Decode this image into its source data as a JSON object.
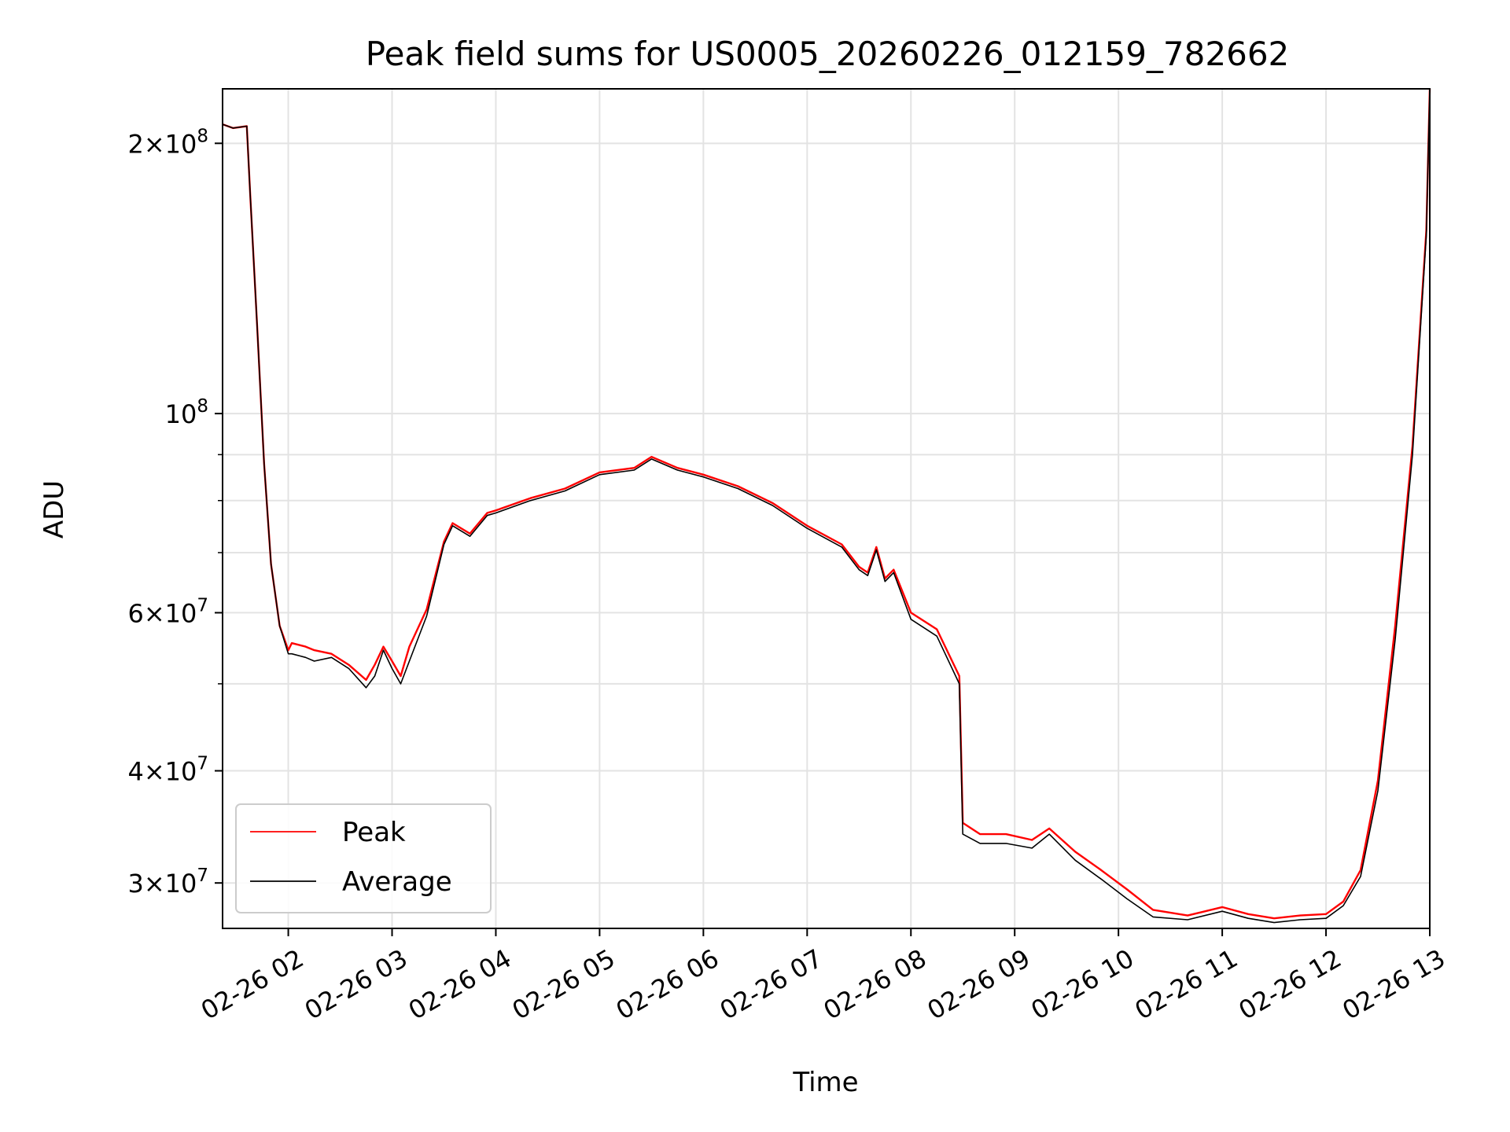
{
  "chart_data": {
    "type": "line",
    "title": "Peak field sums for US0005_20260226_012159_782662",
    "xlabel": "Time",
    "ylabel": "ADU",
    "yscale": "log",
    "xlim": [
      "2026-02-26T01:22",
      "2026-02-26T13:00"
    ],
    "ylim": [
      26700000,
      230000000
    ],
    "grid": true,
    "legend_position": "lower-left",
    "colors": {
      "Peak": "#ff0000",
      "Average": "#000000"
    },
    "x_ticks": [
      {
        "label": "02-26 02",
        "value": "2026-02-26T02:00"
      },
      {
        "label": "02-26 03",
        "value": "2026-02-26T03:00"
      },
      {
        "label": "02-26 04",
        "value": "2026-02-26T04:00"
      },
      {
        "label": "02-26 05",
        "value": "2026-02-26T05:00"
      },
      {
        "label": "02-26 06",
        "value": "2026-02-26T06:00"
      },
      {
        "label": "02-26 07",
        "value": "2026-02-26T07:00"
      },
      {
        "label": "02-26 08",
        "value": "2026-02-26T08:00"
      },
      {
        "label": "02-26 09",
        "value": "2026-02-26T09:00"
      },
      {
        "label": "02-26 10",
        "value": "2026-02-26T10:00"
      },
      {
        "label": "02-26 11",
        "value": "2026-02-26T11:00"
      },
      {
        "label": "02-26 12",
        "value": "2026-02-26T12:00"
      },
      {
        "label": "02-26 13",
        "value": "2026-02-26T13:00"
      }
    ],
    "y_major_ticks": [
      {
        "value": 30000000,
        "mantissa": "3",
        "exponent": "7"
      },
      {
        "value": 40000000,
        "mantissa": "4",
        "exponent": "7"
      },
      {
        "value": 60000000,
        "mantissa": "6",
        "exponent": "7"
      },
      {
        "value": 100000000,
        "mantissa": "",
        "exponent": "8"
      },
      {
        "value": 200000000,
        "mantissa": "2",
        "exponent": "8"
      }
    ],
    "y_minor_gridlines": [
      50000000,
      70000000,
      80000000,
      90000000
    ],
    "x": [
      "2026-02-26T01:22",
      "2026-02-26T01:28",
      "2026-02-26T01:36",
      "2026-02-26T01:38",
      "2026-02-26T01:42",
      "2026-02-26T01:46",
      "2026-02-26T01:50",
      "2026-02-26T01:55",
      "2026-02-26T02:00",
      "2026-02-26T02:02",
      "2026-02-26T02:10",
      "2026-02-26T02:15",
      "2026-02-26T02:25",
      "2026-02-26T02:35",
      "2026-02-26T02:45",
      "2026-02-26T02:50",
      "2026-02-26T02:55",
      "2026-02-26T03:00",
      "2026-02-26T03:05",
      "2026-02-26T03:10",
      "2026-02-26T03:20",
      "2026-02-26T03:30",
      "2026-02-26T03:35",
      "2026-02-26T03:45",
      "2026-02-26T03:55",
      "2026-02-26T04:00",
      "2026-02-26T04:20",
      "2026-02-26T04:40",
      "2026-02-26T05:00",
      "2026-02-26T05:20",
      "2026-02-26T05:30",
      "2026-02-26T05:45",
      "2026-02-26T06:00",
      "2026-02-26T06:20",
      "2026-02-26T06:40",
      "2026-02-26T07:00",
      "2026-02-26T07:20",
      "2026-02-26T07:30",
      "2026-02-26T07:35",
      "2026-02-26T07:40",
      "2026-02-26T07:45",
      "2026-02-26T07:50",
      "2026-02-26T08:00",
      "2026-02-26T08:15",
      "2026-02-26T08:28",
      "2026-02-26T08:30",
      "2026-02-26T08:40",
      "2026-02-26T08:55",
      "2026-02-26T09:10",
      "2026-02-26T09:20",
      "2026-02-26T09:35",
      "2026-02-26T09:50",
      "2026-02-26T10:05",
      "2026-02-26T10:20",
      "2026-02-26T10:40",
      "2026-02-26T11:00",
      "2026-02-26T11:15",
      "2026-02-26T11:30",
      "2026-02-26T11:45",
      "2026-02-26T12:00",
      "2026-02-26T12:10",
      "2026-02-26T12:20",
      "2026-02-26T12:30",
      "2026-02-26T12:40",
      "2026-02-26T12:50",
      "2026-02-26T12:58",
      "2026-02-26T13:00"
    ],
    "series": [
      {
        "name": "Peak",
        "values": [
          210000000,
          208000000,
          209000000,
          175000000,
          125000000,
          88000000,
          68000000,
          58000000,
          54500000,
          55500000,
          55000000,
          54500000,
          54000000,
          52500000,
          50500000,
          52500000,
          55000000,
          53000000,
          51000000,
          55000000,
          60500000,
          72000000,
          75500000,
          73500000,
          77500000,
          78000000,
          80500000,
          82500000,
          86000000,
          87000000,
          89500000,
          87000000,
          85500000,
          83000000,
          79500000,
          75000000,
          71500000,
          67500000,
          66500000,
          71000000,
          65500000,
          67000000,
          60000000,
          57500000,
          51000000,
          35000000,
          34000000,
          34000000,
          33500000,
          34500000,
          32500000,
          31000000,
          29500000,
          28000000,
          27600000,
          28200000,
          27700000,
          27400000,
          27600000,
          27700000,
          28600000,
          31000000,
          39000000,
          58000000,
          92000000,
          160000000,
          230000000
        ]
      },
      {
        "name": "Average",
        "values": [
          210000000,
          208000000,
          209000000,
          175000000,
          125000000,
          88000000,
          68000000,
          58000000,
          54000000,
          54000000,
          53500000,
          53000000,
          53500000,
          52000000,
          49500000,
          51000000,
          54500000,
          52000000,
          50000000,
          53000000,
          59500000,
          71500000,
          75000000,
          73000000,
          77000000,
          77500000,
          80000000,
          82000000,
          85500000,
          86500000,
          89000000,
          86500000,
          85000000,
          82500000,
          79000000,
          74500000,
          71000000,
          67000000,
          66000000,
          70500000,
          65000000,
          66500000,
          59000000,
          56500000,
          50000000,
          34000000,
          33200000,
          33200000,
          32800000,
          34000000,
          31800000,
          30300000,
          28800000,
          27500000,
          27300000,
          27900000,
          27400000,
          27100000,
          27300000,
          27400000,
          28300000,
          30500000,
          38000000,
          56000000,
          90000000,
          158000000,
          230000000
        ]
      }
    ]
  }
}
